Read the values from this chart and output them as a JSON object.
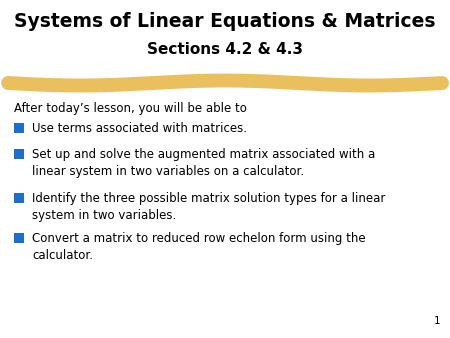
{
  "title_line1": "Systems of Linear Equations & Matrices",
  "title_line2": "Sections 4.2 & 4.3",
  "background_color": "#ffffff",
  "title_color": "#000000",
  "title_fontsize": 13.5,
  "subtitle_fontsize": 11,
  "body_fontsize": 8.5,
  "bullet_color": "#1e6fcc",
  "text_color": "#000000",
  "divider_color": "#e8b84b",
  "intro_text": "After today’s lesson, you will be able to",
  "bullets": [
    "Use terms associated with matrices.",
    "Set up and solve the augmented matrix associated with a\nlinear system in two variables on a calculator.",
    "Identify the three possible matrix solution types for a linear\nsystem in two variables.",
    "Convert a matrix to reduced row echelon form using the\ncalculator."
  ],
  "page_number": "1",
  "figw": 4.5,
  "figh": 3.38,
  "dpi": 100
}
